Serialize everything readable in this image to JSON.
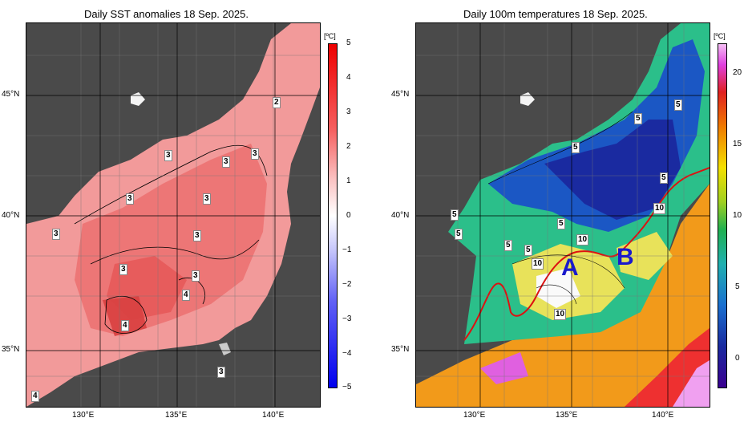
{
  "left": {
    "title": "Daily SST anomalies 18 Sep. 2025.",
    "unit": "[ºC]",
    "colorbar_ticks": [
      "5",
      "4",
      "3",
      "2",
      "1",
      "0",
      "−1",
      "−2",
      "−3",
      "−4",
      "−5"
    ],
    "contour_labels": [
      "2",
      "3",
      "3",
      "3",
      "3",
      "3",
      "3",
      "3",
      "3",
      "3",
      "4",
      "4",
      "3",
      "4",
      "3"
    ]
  },
  "right": {
    "title": "Daily 100m temperatures 18 Sep. 2025.",
    "unit": "[ºC]",
    "colorbar_ticks": [
      "20",
      "15",
      "10",
      "5",
      "0"
    ],
    "contour_labels": [
      "5",
      "5",
      "5",
      "5",
      "5",
      "5",
      "5",
      "5",
      "5",
      "10",
      "10",
      "10",
      "10",
      "10",
      "5"
    ],
    "region_labels": [
      "A",
      "B"
    ]
  },
  "axes": {
    "lat_labels": [
      "45°N",
      "40°N",
      "35°N"
    ],
    "lon_labels": [
      "130°E",
      "135°E",
      "140°E"
    ]
  },
  "colors": {
    "land": "#4a4a4a",
    "sst_anomaly_fill": "#ee8a8a",
    "front_line": "#dd1111",
    "region_label": "#1a1acc"
  }
}
